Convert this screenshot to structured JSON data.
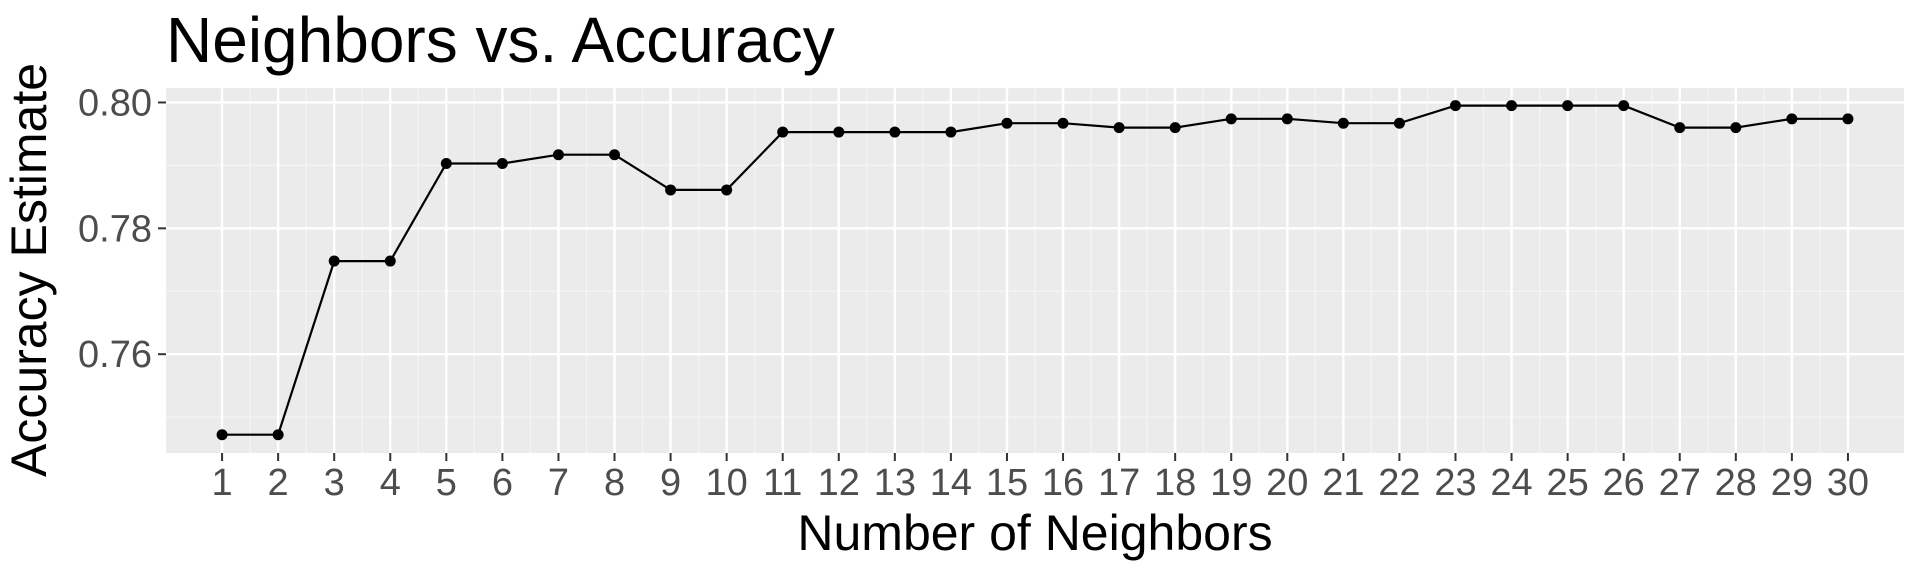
{
  "chart_data": {
    "type": "line",
    "title": "Neighbors vs. Accuracy",
    "xlabel": "Number of Neighbors",
    "ylabel": "Accuracy Estimate",
    "x": [
      1,
      2,
      3,
      4,
      5,
      6,
      7,
      8,
      9,
      10,
      11,
      12,
      13,
      14,
      15,
      16,
      17,
      18,
      19,
      20,
      21,
      22,
      23,
      24,
      25,
      26,
      27,
      28,
      29,
      30
    ],
    "y": [
      0.7472,
      0.7472,
      0.7748,
      0.7748,
      0.7903,
      0.7903,
      0.7917,
      0.7917,
      0.7861,
      0.7861,
      0.7953,
      0.7953,
      0.7953,
      0.7953,
      0.7967,
      0.7967,
      0.796,
      0.796,
      0.7974,
      0.7974,
      0.7967,
      0.7967,
      0.7995,
      0.7995,
      0.7995,
      0.7995,
      0.796,
      0.796,
      0.7974,
      0.7974
    ],
    "xlim": [
      0,
      31
    ],
    "ylim": [
      0.7443,
      0.8023
    ],
    "xticks": [
      "1",
      "2",
      "3",
      "4",
      "5",
      "6",
      "7",
      "8",
      "9",
      "10",
      "11",
      "12",
      "13",
      "14",
      "15",
      "16",
      "17",
      "18",
      "19",
      "20",
      "21",
      "22",
      "23",
      "24",
      "25",
      "26",
      "27",
      "28",
      "29",
      "30"
    ],
    "yticks": [
      {
        "value": 0.76,
        "label": "0.76"
      },
      {
        "value": 0.78,
        "label": "0.78"
      },
      {
        "value": 0.8,
        "label": "0.80"
      }
    ],
    "grid": true,
    "legend": "none",
    "colors": {
      "panel": "#ebebeb",
      "grid_major": "#ffffff",
      "grid_minor": "#f5f5f5",
      "line": "#000000",
      "point": "#000000",
      "tick_text": "#4d4d4d",
      "tick_mark": "#333333"
    }
  }
}
